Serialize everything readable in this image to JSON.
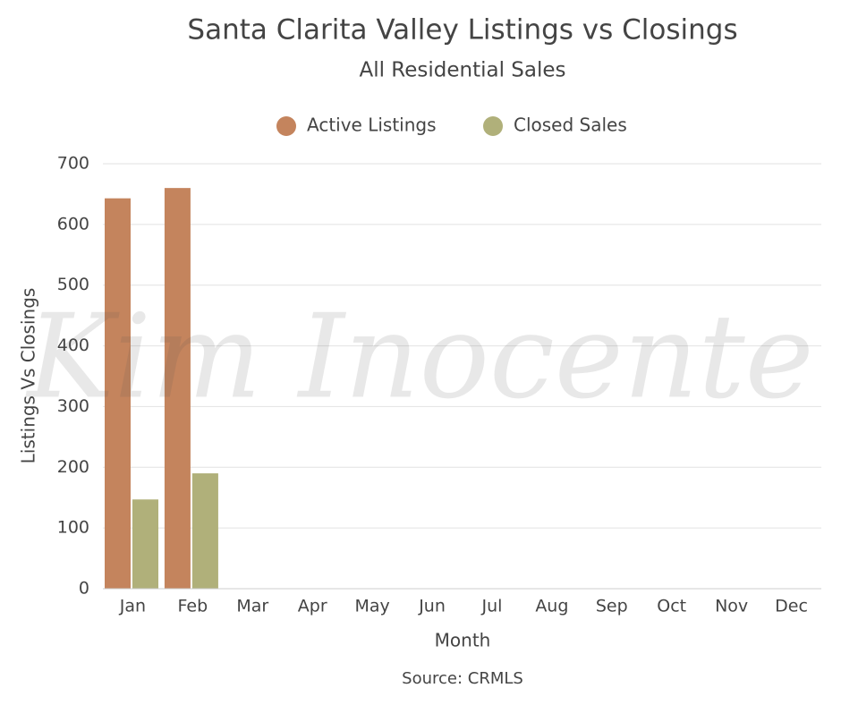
{
  "chart_data": {
    "type": "bar",
    "title": "Santa Clarita Valley Listings vs Closings",
    "subtitle": "All Residential Sales",
    "x_label": "Month",
    "y_label": "Listings Vs Closings",
    "source": "Source: CRMLS",
    "watermark": "Kim Inocente",
    "categories": [
      "Jan",
      "Feb",
      "Mar",
      "Apr",
      "May",
      "Jun",
      "Jul",
      "Aug",
      "Sep",
      "Oct",
      "Nov",
      "Dec"
    ],
    "series": [
      {
        "name": "Active Listings",
        "color": "#c4845d",
        "values": [
          643,
          660,
          null,
          null,
          null,
          null,
          null,
          null,
          null,
          null,
          null,
          null
        ]
      },
      {
        "name": "Closed Sales",
        "color": "#b0b07a",
        "values": [
          147,
          190,
          null,
          null,
          null,
          null,
          null,
          null,
          null,
          null,
          null,
          null
        ]
      }
    ],
    "ylim": [
      0,
      700
    ],
    "yticks": [
      0,
      100,
      200,
      300,
      400,
      500,
      600,
      700
    ],
    "grid": true,
    "legend": "top"
  }
}
